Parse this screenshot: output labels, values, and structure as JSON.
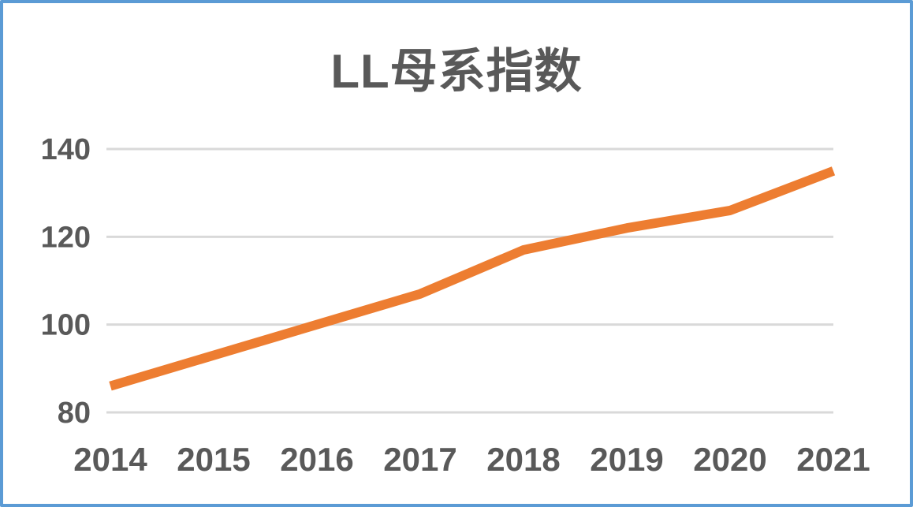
{
  "chart_data": {
    "type": "line",
    "title": "LL母系指数",
    "categories": [
      "2014",
      "2015",
      "2016",
      "2017",
      "2018",
      "2019",
      "2020",
      "2021"
    ],
    "values": [
      86,
      93,
      100,
      107,
      117,
      122,
      126,
      135
    ],
    "xlabel": "",
    "ylabel": "",
    "ylim": [
      80,
      140
    ],
    "yticks": [
      80,
      100,
      120,
      140
    ],
    "grid": true,
    "legend_position": "none",
    "line_color": "#ED7D31",
    "gridline_color": "#D9D9D9",
    "axis_text_color": "#595959",
    "title_color": "#595959",
    "frame_border_color": "#5B9BD5"
  }
}
